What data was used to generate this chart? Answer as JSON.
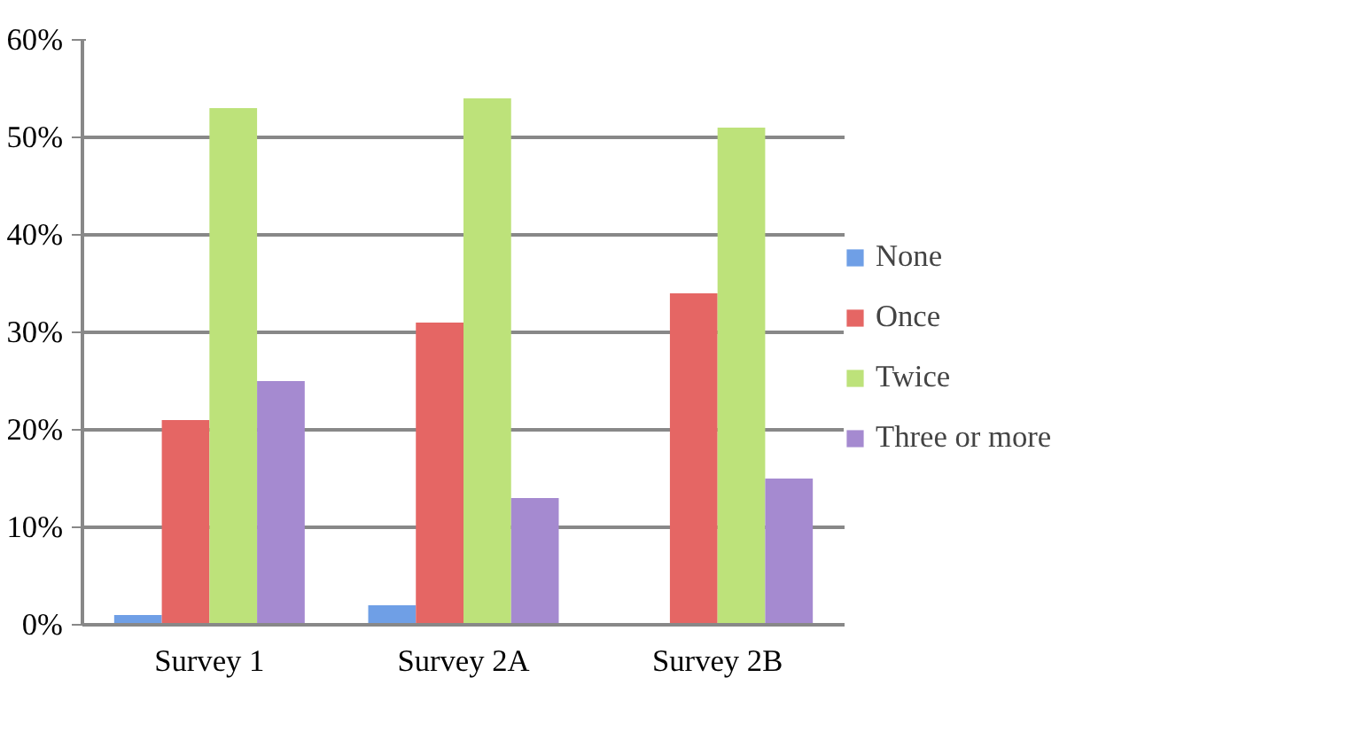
{
  "chart_data": {
    "type": "bar",
    "categories": [
      "Survey 1",
      "Survey 2A",
      "Survey 2B"
    ],
    "series": [
      {
        "name": "None",
        "color": "#6f9fe6",
        "values": [
          1,
          2,
          0
        ]
      },
      {
        "name": "Once",
        "color": "#e56664",
        "values": [
          21,
          31,
          34
        ]
      },
      {
        "name": "Twice",
        "color": "#bde27a",
        "values": [
          53,
          54,
          51
        ]
      },
      {
        "name": "Three or more",
        "color": "#a58ad0",
        "values": [
          25,
          13,
          15
        ]
      }
    ],
    "ylim": [
      0,
      60
    ],
    "yticks": [
      {
        "value": 0,
        "label": "0%"
      },
      {
        "value": 10,
        "label": "10%"
      },
      {
        "value": 20,
        "label": "20%"
      },
      {
        "value": 30,
        "label": "30%"
      },
      {
        "value": 40,
        "label": "40%"
      },
      {
        "value": 50,
        "label": "50%"
      },
      {
        "value": 60,
        "label": "60%"
      }
    ],
    "grid": "y",
    "legend": "right"
  }
}
